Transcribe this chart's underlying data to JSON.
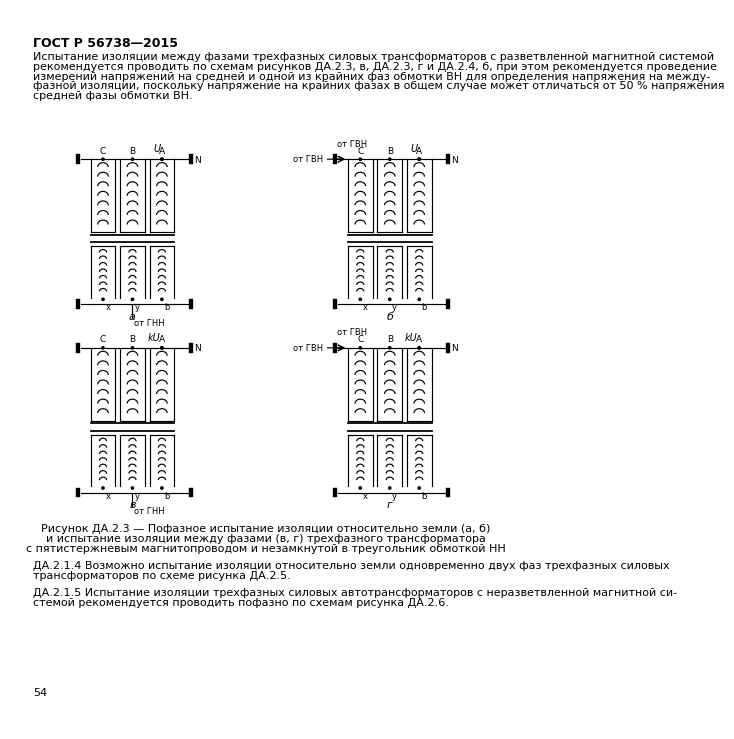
{
  "page_number": "54",
  "header": "ГОСТ Р 56738—2015",
  "body_text": "Испытание изоляции между фазами трехфазных силовых трансформаторов с разветвленной магнитной системой\nрекомендуется проводить по схемам рисунков ДА.2.3, в, ДА.2.3, г и ДА.2.4, б, при этом рекомендуется проведение\nизмерений напряжений на средней и одной из крайних фаз обмотки ВН для определения напряжения на между-\nфазной изоляции, поскольку напряжение на крайних фазах в общем случае может отличаться от 50 % напряжения\nсредней фазы обмотки ВН.",
  "caption_line1": "Рисунок ДА.2.3 — Пофазное испытание изоляции относительно земли (а, б)",
  "caption_line2": "и испытание изоляции между фазами (в, г) трехфазного трансформатора",
  "caption_line3": "с пятистержневым магнитопроводом и незамкнутой в треугольник обмоткой НН",
  "note_text1a": "ДА.2.1.4 Возможно испытание изоляции относительно земли одновременно двух фаз трехфазных силовых",
  "note_text1b": "трансформаторов по схеме рисунка ДА.2.5.",
  "note_text2a": "ДА.2.1.5 Испытание изоляции трехфазных силовых автотрансформаторов с неразветвленной магнитной си-",
  "note_text2b": "стемой рекомендуется проводить пофазно по схемам рисунка ДА.2.6.",
  "bg_color": "#ffffff",
  "text_color": "#000000",
  "font_size_body": 8.0,
  "font_size_header": 9.0,
  "font_size_caption": 8.0,
  "font_size_label": 6.5
}
